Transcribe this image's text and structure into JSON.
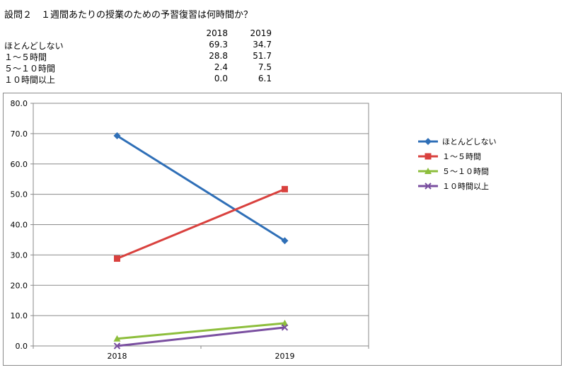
{
  "title": "設問２　１週間あたりの授業のための予習復習は何時間か？",
  "table": {
    "headers": [
      "",
      "2018",
      "2019"
    ],
    "rows": [
      {
        "label": "ほとんどしない",
        "v2018": "69.3",
        "v2019": "34.7"
      },
      {
        "label": "１～５時間",
        "v2018": "28.8",
        "v2019": "51.7"
      },
      {
        "label": "５～１０時間",
        "v2018": "2.4",
        "v2019": "7.5"
      },
      {
        "label": "１０時間以上",
        "v2018": "0.0",
        "v2019": "6.1"
      }
    ]
  },
  "chart_data": {
    "type": "line",
    "categories": [
      "2018",
      "2019"
    ],
    "ylim": [
      0,
      80
    ],
    "yticks": [
      "0.0",
      "10.0",
      "20.0",
      "30.0",
      "40.0",
      "50.0",
      "60.0",
      "70.0",
      "80.0"
    ],
    "grid": true,
    "legend": "right",
    "series": [
      {
        "name": "ほとんどしない",
        "values": [
          69.3,
          34.7
        ],
        "color": "#2F6FB7",
        "marker": "diamond"
      },
      {
        "name": "１～５時間",
        "values": [
          28.8,
          51.7
        ],
        "color": "#D9413E",
        "marker": "square"
      },
      {
        "name": "５～１０時間",
        "values": [
          2.4,
          7.5
        ],
        "color": "#8DBE3C",
        "marker": "triangle"
      },
      {
        "name": "１０時間以上",
        "values": [
          0.0,
          6.1
        ],
        "color": "#7A4FA0",
        "marker": "x"
      }
    ]
  }
}
